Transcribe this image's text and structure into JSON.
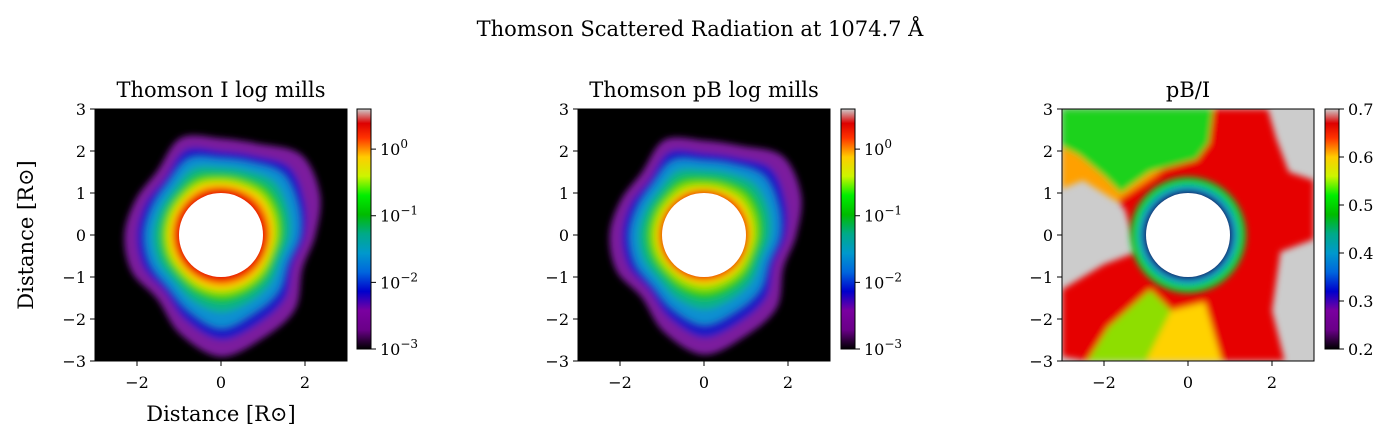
{
  "figure": {
    "suptitle": "Thomson Scattered Radiation at 1074.7 Å"
  },
  "chart_data": [
    {
      "type": "heatmap",
      "title": "Thomson I log mills",
      "xlabel": "Distance [R⊙]",
      "ylabel": "Distance [R⊙]",
      "xlim": [
        -3,
        3
      ],
      "ylim": [
        -3,
        3
      ],
      "xticks": [
        -2,
        0,
        2
      ],
      "yticks": [
        3,
        2,
        1,
        0,
        -1,
        -2,
        -3
      ],
      "colorbar": {
        "scale": "log",
        "range": [
          0.001,
          4
        ],
        "tick_values": [
          1,
          0.1,
          0.01,
          0.001
        ],
        "tick_labels": [
          {
            "base": "10",
            "exp": "0"
          },
          {
            "base": "10",
            "exp": "−1"
          },
          {
            "base": "10",
            "exp": "−2"
          },
          {
            "base": "10",
            "exp": "−3"
          }
        ],
        "colormap": "nipy_spectral"
      },
      "occulting_disk_radius": 1.0,
      "background_color": "#000000",
      "contours": [
        {
          "level": 0.0013,
          "color": "#7b1a9e",
          "radii": [
            2.25,
            2.55,
            2.7,
            2.35,
            2.3,
            2.5,
            2.15,
            2.2,
            2.3,
            2.3,
            2.15,
            2.55,
            2.9,
            2.65,
            2.5,
            2.1
          ]
        },
        {
          "level": 0.004,
          "color": "#1c1cc4",
          "radii": [
            2.0,
            2.15,
            2.3,
            2.05,
            2.0,
            2.2,
            1.9,
            1.95,
            2.0,
            2.0,
            1.9,
            2.2,
            2.5,
            2.3,
            2.15,
            1.85
          ]
        },
        {
          "level": 0.01,
          "color": "#0a8fd0",
          "radii": [
            1.85,
            1.95,
            2.05,
            1.85,
            1.8,
            1.95,
            1.75,
            1.75,
            1.8,
            1.8,
            1.75,
            1.95,
            2.2,
            2.0,
            1.9,
            1.7
          ]
        },
        {
          "level": 0.025,
          "color": "#10b08a",
          "radii": [
            1.65,
            1.72,
            1.8,
            1.66,
            1.62,
            1.72,
            1.58,
            1.58,
            1.62,
            1.62,
            1.58,
            1.72,
            1.85,
            1.75,
            1.66,
            1.54
          ]
        },
        {
          "level": 0.06,
          "color": "#1ec61e",
          "radii": [
            1.5,
            1.56,
            1.6,
            1.5,
            1.47,
            1.54,
            1.45,
            1.45,
            1.47,
            1.47,
            1.45,
            1.54,
            1.62,
            1.56,
            1.5,
            1.42
          ]
        },
        {
          "level": 0.15,
          "color": "#8ede00",
          "radii": [
            1.38,
            1.42,
            1.44,
            1.38,
            1.36,
            1.4,
            1.35,
            1.35,
            1.36,
            1.36,
            1.35,
            1.4,
            1.45,
            1.42,
            1.38,
            1.33
          ]
        },
        {
          "level": 0.35,
          "color": "#f6d400",
          "radii": [
            1.27,
            1.3,
            1.32,
            1.27,
            1.26,
            1.29,
            1.25,
            1.25,
            1.26,
            1.26,
            1.25,
            1.29,
            1.32,
            1.3,
            1.27,
            1.24
          ]
        },
        {
          "level": 0.7,
          "color": "#ff8000",
          "radii": [
            1.17,
            1.19,
            1.2,
            1.17,
            1.16,
            1.18,
            1.16,
            1.16,
            1.16,
            1.16,
            1.16,
            1.18,
            1.2,
            1.19,
            1.17,
            1.15
          ]
        },
        {
          "level": 1.5,
          "color": "#e80000",
          "radii": [
            1.1,
            1.1,
            1.11,
            1.1,
            1.1,
            1.1,
            1.1,
            1.1,
            1.1,
            1.1,
            1.1,
            1.1,
            1.11,
            1.1,
            1.1,
            1.1
          ]
        }
      ]
    },
    {
      "type": "heatmap",
      "title": "Thomson pB log mills",
      "xlabel": "",
      "ylabel": "",
      "xlim": [
        -3,
        3
      ],
      "ylim": [
        -3,
        3
      ],
      "xticks": [
        -2,
        0,
        2
      ],
      "yticks": [
        3,
        2,
        1,
        0,
        -1,
        -2,
        -3
      ],
      "colorbar": {
        "scale": "log",
        "range": [
          0.001,
          4
        ],
        "tick_values": [
          1,
          0.1,
          0.01,
          0.001
        ],
        "tick_labels": [
          {
            "base": "10",
            "exp": "0"
          },
          {
            "base": "10",
            "exp": "−1"
          },
          {
            "base": "10",
            "exp": "−2"
          },
          {
            "base": "10",
            "exp": "−3"
          }
        ],
        "colormap": "nipy_spectral"
      },
      "occulting_disk_radius": 1.0,
      "background_color": "#000000",
      "contours": [
        {
          "level": 0.0013,
          "color": "#7b1a9e",
          "radii": [
            2.2,
            2.5,
            2.65,
            2.3,
            2.25,
            2.45,
            2.1,
            2.15,
            2.25,
            2.25,
            2.1,
            2.5,
            2.85,
            2.6,
            2.45,
            2.05
          ]
        },
        {
          "level": 0.004,
          "color": "#1c1cc4",
          "radii": [
            1.95,
            2.1,
            2.25,
            2.0,
            1.95,
            2.15,
            1.85,
            1.9,
            1.95,
            1.95,
            1.85,
            2.15,
            2.45,
            2.25,
            2.1,
            1.8
          ]
        },
        {
          "level": 0.01,
          "color": "#0a8fd0",
          "radii": [
            1.78,
            1.88,
            1.98,
            1.8,
            1.75,
            1.9,
            1.7,
            1.7,
            1.75,
            1.75,
            1.7,
            1.9,
            2.12,
            1.95,
            1.85,
            1.65
          ]
        },
        {
          "level": 0.025,
          "color": "#10b08a",
          "radii": [
            1.58,
            1.66,
            1.72,
            1.6,
            1.56,
            1.66,
            1.52,
            1.52,
            1.56,
            1.56,
            1.52,
            1.66,
            1.78,
            1.68,
            1.6,
            1.48
          ]
        },
        {
          "level": 0.06,
          "color": "#1ec61e",
          "radii": [
            1.42,
            1.48,
            1.52,
            1.43,
            1.4,
            1.47,
            1.38,
            1.38,
            1.4,
            1.4,
            1.38,
            1.47,
            1.55,
            1.49,
            1.43,
            1.35
          ]
        },
        {
          "level": 0.15,
          "color": "#8ede00",
          "radii": [
            1.28,
            1.32,
            1.35,
            1.29,
            1.27,
            1.31,
            1.26,
            1.26,
            1.27,
            1.27,
            1.26,
            1.31,
            1.36,
            1.32,
            1.29,
            1.24
          ]
        },
        {
          "level": 0.35,
          "color": "#f6d400",
          "radii": [
            1.16,
            1.18,
            1.2,
            1.16,
            1.15,
            1.17,
            1.14,
            1.14,
            1.15,
            1.15,
            1.14,
            1.17,
            1.2,
            1.18,
            1.16,
            1.13
          ]
        },
        {
          "level": 0.7,
          "color": "#ff8000",
          "radii": [
            1.07,
            1.08,
            1.09,
            1.07,
            1.07,
            1.08,
            1.06,
            1.06,
            1.07,
            1.07,
            1.06,
            1.08,
            1.09,
            1.08,
            1.07,
            1.06
          ]
        },
        {
          "level": 1.5,
          "color": "#e80000",
          "radii": [
            1.03,
            1.03,
            1.03,
            1.03,
            1.03,
            1.03,
            1.03,
            1.03,
            1.03,
            1.03,
            1.03,
            1.03,
            1.03,
            1.03,
            1.03,
            1.03
          ]
        }
      ]
    },
    {
      "type": "heatmap",
      "title": "pB/I",
      "xlabel": "",
      "ylabel": "",
      "xlim": [
        -3,
        3
      ],
      "ylim": [
        -3,
        3
      ],
      "xticks": [
        -2,
        0,
        2
      ],
      "yticks": [
        3,
        2,
        1,
        0,
        -1,
        -2,
        -3
      ],
      "colorbar": {
        "scale": "linear",
        "range": [
          0.2,
          0.7
        ],
        "tick_values": [
          0.7,
          0.6,
          0.5,
          0.4,
          0.3,
          0.2
        ],
        "tick_labels": [
          {
            "base": "0.7",
            "exp": ""
          },
          {
            "base": "0.6",
            "exp": ""
          },
          {
            "base": "0.5",
            "exp": ""
          },
          {
            "base": "0.4",
            "exp": ""
          },
          {
            "base": "0.3",
            "exp": ""
          },
          {
            "base": "0.2",
            "exp": ""
          }
        ],
        "colormap": "nipy_spectral"
      },
      "occulting_disk_radius": 1.0,
      "background_color": "#cccccc",
      "regions": [
        {
          "level": 0.62,
          "color": "#e60000",
          "points": [
            [
              -3,
              2.3
            ],
            [
              -2.2,
              1.5
            ],
            [
              -1.5,
              0.6
            ],
            [
              -1.2,
              -0.4
            ],
            [
              -2.0,
              -0.7
            ],
            [
              -3,
              -1.3
            ],
            [
              -3,
              -2.9
            ],
            [
              -2.4,
              -3
            ],
            [
              2.3,
              -3
            ],
            [
              2.0,
              -1.8
            ],
            [
              2.2,
              -0.4
            ],
            [
              3,
              -0.1
            ],
            [
              3,
              1.3
            ],
            [
              2.4,
              1.5
            ],
            [
              2.1,
              2.3
            ],
            [
              1.9,
              3
            ],
            [
              -0.6,
              3
            ],
            [
              -1.5,
              3
            ]
          ]
        },
        {
          "level": 0.55,
          "color": "#ffa000",
          "points": [
            [
              -1.5,
              3
            ],
            [
              -0.6,
              3
            ],
            [
              -0.1,
              2.0
            ],
            [
              -0.8,
              1.4
            ],
            [
              -1.7,
              0.8
            ],
            [
              -2.5,
              1.3
            ],
            [
              -3,
              1.1
            ],
            [
              -3,
              3
            ]
          ]
        },
        {
          "level": 0.5,
          "color": "#8ede00",
          "points": [
            [
              -2.4,
              -3
            ],
            [
              -1.0,
              -3
            ],
            [
              -0.4,
              -1.8
            ],
            [
              -0.9,
              -1.3
            ],
            [
              -1.9,
              -2.2
            ]
          ]
        },
        {
          "level": 0.6,
          "color": "#ffd200",
          "points": [
            [
              -1.0,
              -3
            ],
            [
              0.8,
              -3
            ],
            [
              0.4,
              -1.6
            ],
            [
              -0.4,
              -1.8
            ]
          ]
        },
        {
          "level": 0.48,
          "color": "#1ed21e",
          "points": [
            [
              -3,
              3
            ],
            [
              0.6,
              3
            ],
            [
              0.5,
              2.2
            ],
            [
              0.2,
              1.8
            ],
            [
              -0.9,
              1.5
            ],
            [
              -1.6,
              1.0
            ],
            [
              -2.0,
              1.4
            ],
            [
              -2.6,
              1.9
            ],
            [
              -3,
              2.1
            ]
          ]
        },
        {
          "level": 0.62,
          "color": "#e60000",
          "points": [
            [
              0.6,
              3
            ],
            [
              1.9,
              3
            ],
            [
              1.6,
              2.2
            ],
            [
              1.3,
              1.8
            ],
            [
              0.5,
              2.2
            ]
          ]
        }
      ],
      "rings": [
        {
          "level": 0.5,
          "color": "#18d030",
          "radius": 1.38
        },
        {
          "level": 0.45,
          "color": "#10b890",
          "radius": 1.22
        },
        {
          "level": 0.38,
          "color": "#0aa0d8",
          "radius": 1.14
        },
        {
          "level": 0.3,
          "color": "#1818c8",
          "radius": 1.08
        },
        {
          "level": 0.25,
          "color": "#40108a",
          "radius": 1.04
        },
        {
          "level": 0.2,
          "color": "#000000",
          "radius": 1.02
        }
      ]
    }
  ]
}
